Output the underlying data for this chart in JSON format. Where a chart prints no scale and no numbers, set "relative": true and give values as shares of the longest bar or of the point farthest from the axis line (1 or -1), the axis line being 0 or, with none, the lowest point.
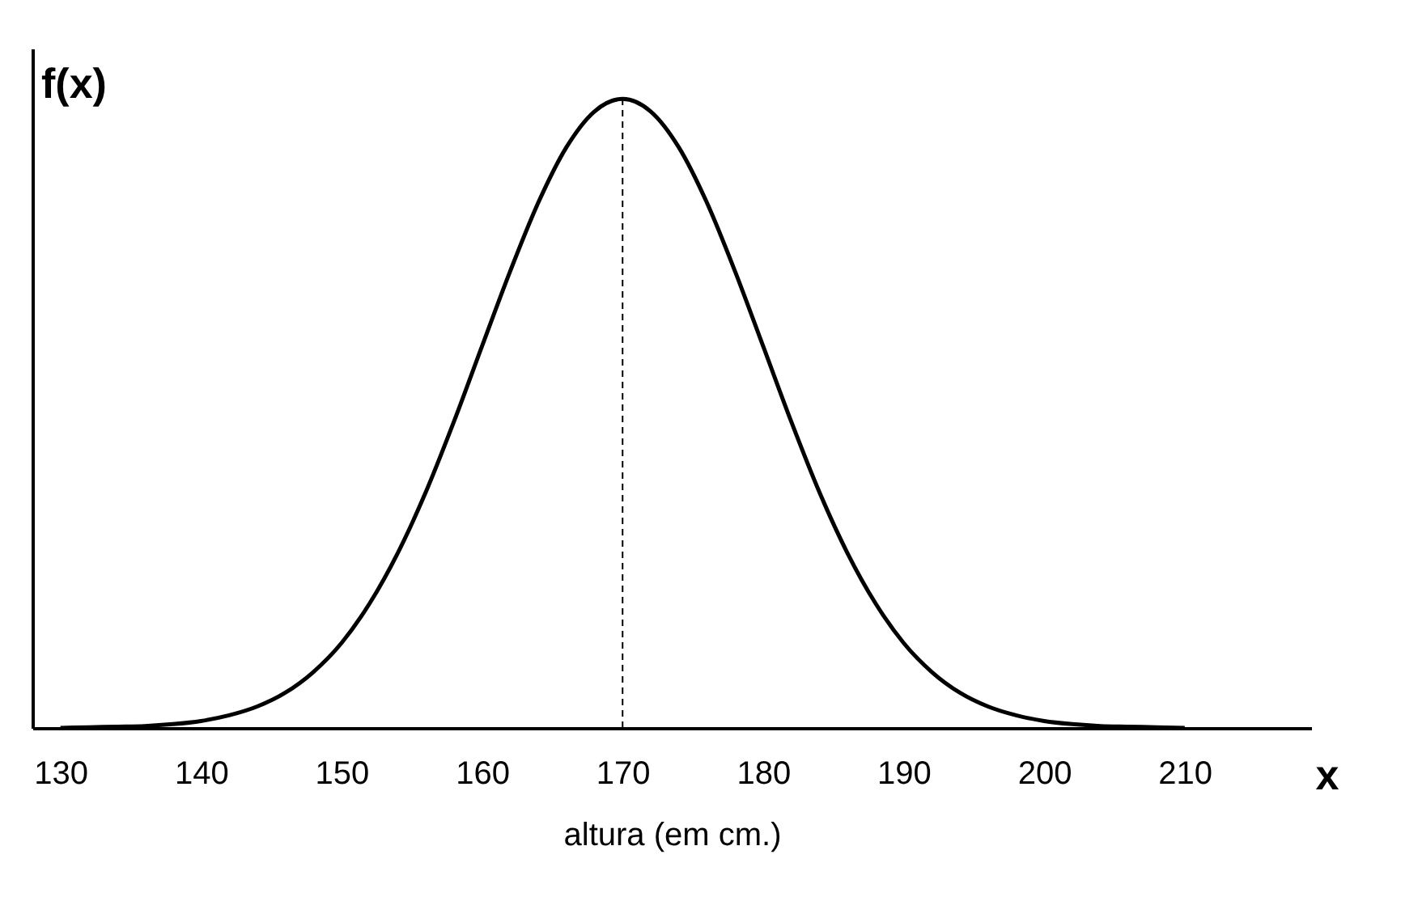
{
  "chart_data": {
    "type": "line",
    "relative": true,
    "ylabel": "f(x)",
    "xlabel": "altura (em cm.)",
    "annotations": [
      "x"
    ],
    "x": [
      130,
      132,
      134,
      136,
      138,
      140,
      142,
      144,
      146,
      148,
      150,
      152,
      154,
      156,
      158,
      160,
      162,
      164,
      166,
      168,
      170,
      172,
      174,
      176,
      178,
      180,
      182,
      184,
      186,
      188,
      190,
      192,
      194,
      196,
      198,
      200,
      202,
      204,
      206,
      208,
      210
    ],
    "series": [
      {
        "color": "#000000",
        "values": [
          0.0,
          0.001,
          0.002,
          0.003,
          0.006,
          0.011,
          0.02,
          0.034,
          0.056,
          0.089,
          0.135,
          0.198,
          0.278,
          0.375,
          0.487,
          0.607,
          0.726,
          0.835,
          0.923,
          0.98,
          1.0,
          0.98,
          0.923,
          0.835,
          0.726,
          0.607,
          0.487,
          0.375,
          0.278,
          0.198,
          0.135,
          0.089,
          0.056,
          0.034,
          0.02,
          0.011,
          0.006,
          0.003,
          0.002,
          0.001,
          0.0
        ]
      }
    ],
    "xlim": [
      128,
      219
    ],
    "xticks": [
      130,
      140,
      150,
      160,
      170,
      180,
      190,
      200,
      210
    ],
    "ref_lines": [
      {
        "axis": "x",
        "value": 170,
        "color": "#000000",
        "line_style": "dashed"
      }
    ],
    "grid": false,
    "marker": "none",
    "line_style": "solid"
  }
}
